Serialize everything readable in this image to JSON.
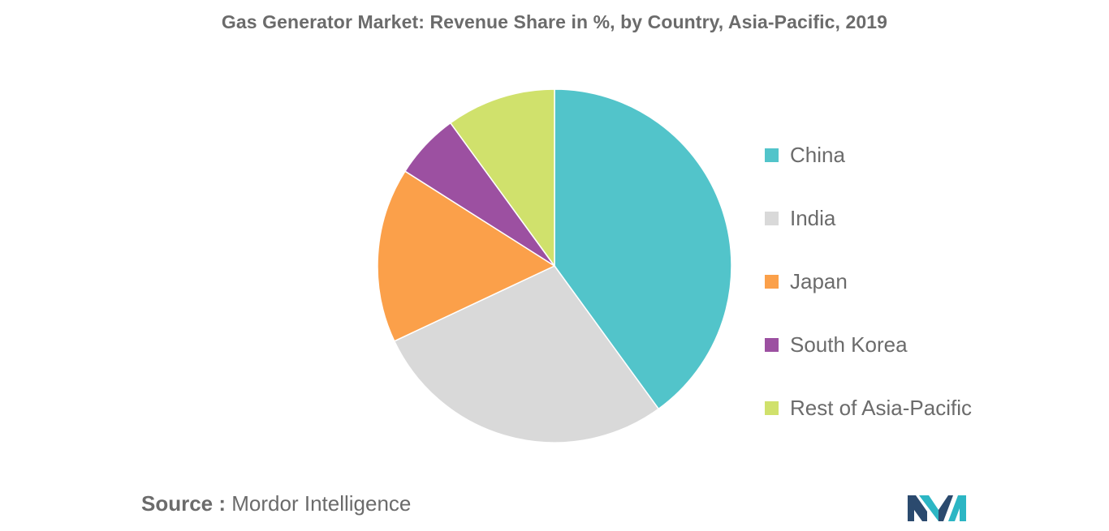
{
  "chart_data": {
    "type": "pie",
    "title": "Gas Generator Market: Revenue Share in %, by Country, Asia-Pacific, 2019",
    "categories": [
      "China",
      "India",
      "Japan",
      "South Korea",
      "Rest of Asia-Pacific"
    ],
    "values": [
      40,
      28,
      16,
      6,
      10
    ],
    "colors": [
      "#52c4ca",
      "#d9d9d9",
      "#fba04a",
      "#9c50a1",
      "#d0e16c"
    ],
    "legend_position": "right",
    "start_angle": "top",
    "direction": "clockwise"
  },
  "source": {
    "prefix": "Source :",
    "text": "Mordor Intelligence"
  },
  "logo": {
    "icon": "mordor-intelligence-logo-icon",
    "colors": [
      "#2b4a6e",
      "#2cb6c4"
    ]
  }
}
